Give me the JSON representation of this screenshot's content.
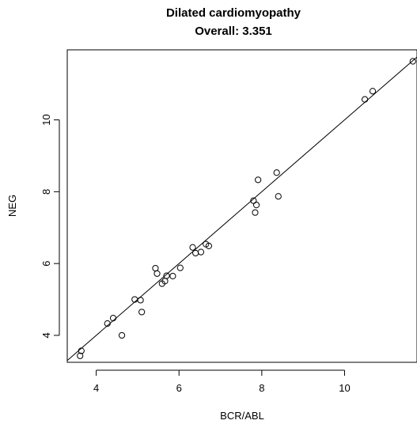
{
  "chart_data": {
    "type": "scatter",
    "title": "Dilated cardiomyopathy",
    "subtitle": "Overall: 3.351",
    "xlabel": "BCR/ABL",
    "ylabel": "NEG",
    "xlim": [
      3.3,
      11.75
    ],
    "ylim": [
      3.25,
      11.95
    ],
    "xticks": [
      4,
      6,
      8,
      10
    ],
    "yticks": [
      4,
      6,
      8,
      10
    ],
    "grid": false,
    "fit_line": {
      "slope": 1.0,
      "intercept": 0.0
    },
    "points": [
      [
        3.61,
        3.43
      ],
      [
        3.64,
        3.57
      ],
      [
        4.27,
        4.33
      ],
      [
        4.41,
        4.48
      ],
      [
        4.62,
        4.0
      ],
      [
        4.93,
        5.0
      ],
      [
        5.07,
        4.98
      ],
      [
        5.1,
        4.65
      ],
      [
        5.43,
        5.87
      ],
      [
        5.47,
        5.72
      ],
      [
        5.59,
        5.44
      ],
      [
        5.66,
        5.51
      ],
      [
        5.7,
        5.66
      ],
      [
        5.85,
        5.65
      ],
      [
        6.03,
        5.88
      ],
      [
        6.33,
        6.45
      ],
      [
        6.4,
        6.29
      ],
      [
        6.53,
        6.32
      ],
      [
        6.65,
        6.54
      ],
      [
        6.72,
        6.49
      ],
      [
        7.8,
        7.75
      ],
      [
        7.84,
        7.42
      ],
      [
        7.87,
        7.63
      ],
      [
        7.91,
        8.33
      ],
      [
        8.36,
        8.53
      ],
      [
        8.4,
        7.87
      ],
      [
        10.49,
        10.57
      ],
      [
        10.68,
        10.8
      ],
      [
        11.65,
        11.63
      ]
    ]
  }
}
